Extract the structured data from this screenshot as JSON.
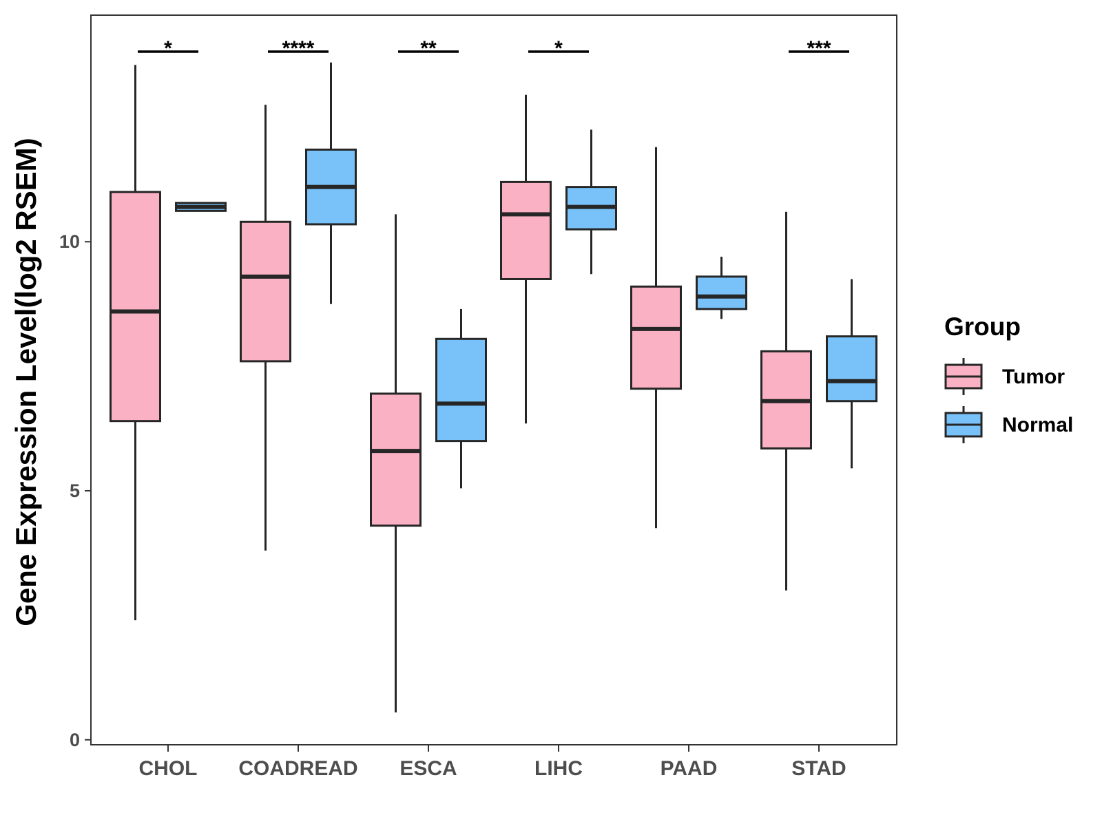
{
  "chart_data": {
    "type": "boxplot",
    "title": "",
    "xlabel": "",
    "ylabel": "Gene Expression Level(log2 RSEM)",
    "ylim": [
      -0.1,
      14.55
    ],
    "yticks": [
      0,
      5,
      10
    ],
    "grid": false,
    "categories": [
      "CHOL",
      "COADREAD",
      "ESCA",
      "LIHC",
      "PAAD",
      "STAD"
    ],
    "legend": {
      "title": "Group",
      "position": "right",
      "entries": [
        {
          "name": "Tumor",
          "color": "#fbb1c4"
        },
        {
          "name": "Normal",
          "color": "#79c2f9"
        }
      ]
    },
    "series": [
      {
        "name": "Tumor",
        "color": "#fbb1c4",
        "boxes": [
          {
            "min": 2.4,
            "q1": 6.4,
            "median": 8.6,
            "q3": 11.0,
            "max": 13.55
          },
          {
            "min": 3.8,
            "q1": 7.6,
            "median": 9.3,
            "q3": 10.4,
            "max": 12.75
          },
          {
            "min": 0.55,
            "q1": 4.3,
            "median": 5.8,
            "q3": 6.95,
            "max": 10.55
          },
          {
            "min": 6.35,
            "q1": 9.25,
            "median": 10.55,
            "q3": 11.2,
            "max": 12.95
          },
          {
            "min": 4.25,
            "q1": 7.05,
            "median": 8.25,
            "q3": 9.1,
            "max": 11.9
          },
          {
            "min": 3.0,
            "q1": 5.85,
            "median": 6.8,
            "q3": 7.8,
            "max": 10.6
          }
        ]
      },
      {
        "name": "Normal",
        "color": "#79c2f9",
        "boxes": [
          {
            "min": 10.62,
            "q1": 10.62,
            "median": 10.7,
            "q3": 10.78,
            "max": 10.78
          },
          {
            "min": 8.75,
            "q1": 10.35,
            "median": 11.1,
            "q3": 11.85,
            "max": 13.6
          },
          {
            "min": 5.05,
            "q1": 6.0,
            "median": 6.75,
            "q3": 8.05,
            "max": 8.65
          },
          {
            "min": 9.35,
            "q1": 10.25,
            "median": 10.7,
            "q3": 11.1,
            "max": 12.25
          },
          {
            "min": 8.45,
            "q1": 8.65,
            "median": 8.9,
            "q3": 9.3,
            "max": 9.7
          },
          {
            "min": 5.45,
            "q1": 6.8,
            "median": 7.2,
            "q3": 8.1,
            "max": 9.25
          }
        ]
      }
    ],
    "significance": [
      "*",
      "****",
      "**",
      "*",
      "",
      "***"
    ]
  }
}
